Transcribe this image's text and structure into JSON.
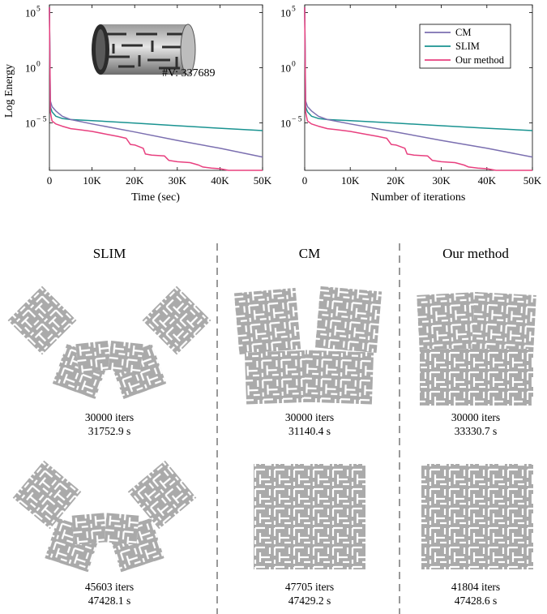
{
  "colors": {
    "CM": "#7b6fb0",
    "SLIM": "#1a9391",
    "Our method": "#e8407f",
    "shape": "#aaaaaa",
    "slit": "#ffffff"
  },
  "inset": {
    "vertex_label": "#V: 337689",
    "icon": "perforated-cylinder-mesh-icon"
  },
  "chart_data": [
    {
      "type": "line",
      "xlabel": "Time (sec)",
      "ylabel": "Log Energy",
      "y_scale": "log",
      "xlim": [
        0,
        50000
      ],
      "ylim": [
        5e-10,
        500000.0
      ],
      "xticks": [
        "0",
        "10K",
        "20K",
        "30K",
        "40K",
        "50K"
      ],
      "yticks": [
        {
          "base": "10",
          "exp": "5"
        },
        {
          "base": "10",
          "exp": "0"
        },
        {
          "base": "10",
          "exp": "-5"
        }
      ],
      "series": [
        {
          "name": "CM",
          "x": [
            0,
            200,
            600,
            1500,
            3000,
            5000,
            10000,
            20000,
            30000,
            40000,
            50000
          ],
          "y": [
            300000,
            0.001,
            0.0003,
            0.00012,
            4e-05,
            2e-05,
            8e-06,
            1.5e-06,
            2.6e-07,
            5e-08,
            8e-09
          ]
        },
        {
          "name": "SLIM",
          "x": [
            0,
            200,
            600,
            1500,
            3000,
            5000,
            10000,
            20000,
            30000,
            40000,
            50000
          ],
          "y": [
            300000,
            0.0003,
            0.0001,
            4e-05,
            2.5e-05,
            2e-05,
            1.6e-05,
            9.5e-06,
            5.5e-06,
            3.3e-06,
            2e-06
          ]
        },
        {
          "name": "Our method",
          "x": [
            0,
            200,
            600,
            1500,
            3000,
            5000,
            7000,
            10000,
            13000,
            16000,
            18000,
            19000,
            20000,
            22000,
            22500,
            24000,
            27000,
            28000,
            30000,
            33000,
            35000,
            36000,
            38000,
            40000,
            42000,
            46000,
            50000
          ],
          "y": [
            300000,
            0.0001,
            1.5e-05,
            8e-06,
            5e-06,
            3e-06,
            2.4e-06,
            1.7e-06,
            1e-06,
            6e-07,
            4e-07,
            1.1e-07,
            1e-07,
            5e-08,
            1.5e-08,
            1.2e-08,
            1e-08,
            4e-09,
            3e-09,
            2.5e-09,
            1.5e-09,
            1e-09,
            8e-10,
            7e-10,
            5e-10,
            4e-10,
            4e-10
          ]
        }
      ]
    },
    {
      "type": "line",
      "xlabel": "Number of iterations",
      "ylabel": "",
      "y_scale": "log",
      "xlim": [
        0,
        50000
      ],
      "ylim": [
        5e-10,
        500000.0
      ],
      "xticks": [
        "0",
        "10K",
        "20K",
        "30K",
        "40K",
        "50K"
      ],
      "yticks": [
        {
          "base": "10",
          "exp": "5"
        },
        {
          "base": "10",
          "exp": "0"
        },
        {
          "base": "10",
          "exp": "-5"
        }
      ],
      "legend": {
        "position": "top-right",
        "entries": [
          "CM",
          "SLIM",
          "Our method"
        ]
      },
      "series": [
        {
          "name": "CM",
          "x": [
            0,
            200,
            600,
            1500,
            3000,
            5000,
            10000,
            20000,
            30000,
            40000,
            50000
          ],
          "y": [
            300000,
            0.001,
            0.0003,
            0.00012,
            4e-05,
            2e-05,
            8e-06,
            1.5e-06,
            2.6e-07,
            5e-08,
            8e-09
          ]
        },
        {
          "name": "SLIM",
          "x": [
            0,
            200,
            600,
            1500,
            3000,
            5000,
            10000,
            20000,
            30000,
            40000,
            50000
          ],
          "y": [
            300000,
            0.0003,
            0.0001,
            4e-05,
            2.5e-05,
            2e-05,
            1.6e-05,
            9.5e-06,
            5.5e-06,
            3.3e-06,
            2e-06
          ]
        },
        {
          "name": "Our method",
          "x": [
            0,
            200,
            600,
            1500,
            3000,
            5000,
            7000,
            10000,
            13000,
            16000,
            18000,
            19000,
            20000,
            22000,
            22500,
            24000,
            27000,
            28000,
            30000,
            33000,
            35000,
            36000,
            38000,
            40000,
            42000,
            46000,
            50000
          ],
          "y": [
            300000,
            0.0001,
            1.5e-05,
            8e-06,
            5e-06,
            3e-06,
            2.4e-06,
            1.7e-06,
            1e-06,
            6e-07,
            4e-07,
            1.1e-07,
            1e-07,
            5e-08,
            1.5e-08,
            1.2e-08,
            1e-08,
            4e-09,
            3e-09,
            2.5e-09,
            1.5e-09,
            1e-09,
            8e-10,
            7e-10,
            5e-10,
            4e-10,
            4e-10
          ]
        }
      ]
    }
  ],
  "comparison": {
    "columns": [
      {
        "header": "SLIM",
        "results": [
          {
            "iters": "30000 iters",
            "time": "31752.9 s"
          },
          {
            "iters": "45603 iters",
            "time": "47428.1 s"
          }
        ]
      },
      {
        "header": "CM",
        "results": [
          {
            "iters": "30000 iters",
            "time": "31140.4 s"
          },
          {
            "iters": "47705 iters",
            "time": "47429.2 s"
          }
        ]
      },
      {
        "header": "Our method",
        "results": [
          {
            "iters": "30000 iters",
            "time": "33330.7 s"
          },
          {
            "iters": "41804 iters",
            "time": "47428.6 s"
          }
        ]
      }
    ]
  }
}
